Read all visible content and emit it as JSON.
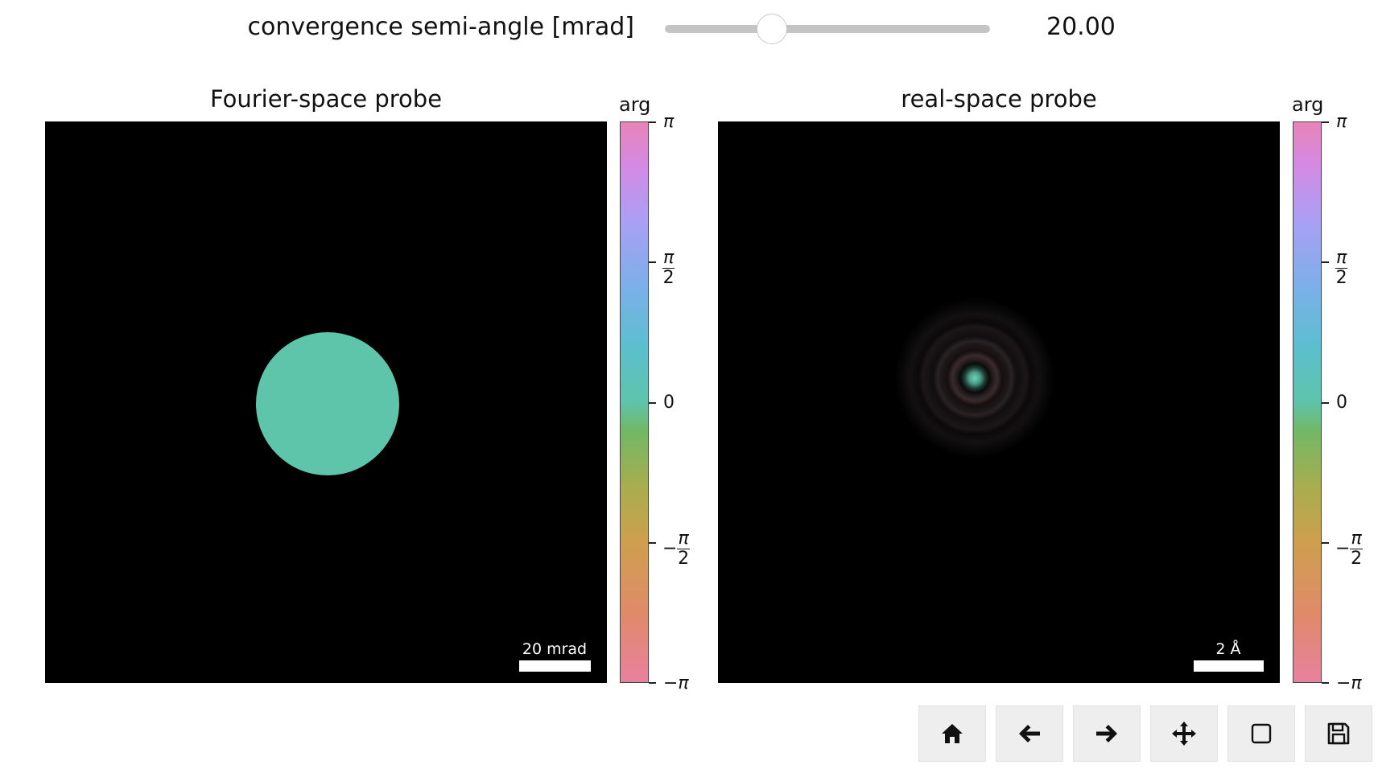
{
  "slider": {
    "label": "convergence semi-angle [mrad]",
    "value": "20.00",
    "fraction": 0.33
  },
  "left_panel": {
    "title": "Fourier-space probe",
    "scalebar_label": "20 mrad",
    "colorbar": {
      "title": "arg",
      "ticks": {
        "top": "π",
        "half_top": "π",
        "half_den": "2",
        "zero": "0",
        "neg_half": "−",
        "neg_half_num": "π",
        "neg_half_den": "2",
        "bottom": "−π"
      }
    }
  },
  "right_panel": {
    "title": "real-space probe",
    "scalebar_label": "2 Å",
    "colorbar": {
      "title": "arg",
      "ticks": {
        "top": "π",
        "half_top": "π",
        "half_den": "2",
        "zero": "0",
        "neg_half": "−",
        "neg_half_num": "π",
        "neg_half_den": "2",
        "bottom": "−π"
      }
    }
  },
  "toolbar": {
    "buttons": [
      {
        "icon": "home-icon"
      },
      {
        "icon": "arrow-left-icon"
      },
      {
        "icon": "arrow-right-icon"
      },
      {
        "icon": "move-icon"
      },
      {
        "icon": "zoom-rect-icon"
      },
      {
        "icon": "save-icon"
      }
    ]
  }
}
